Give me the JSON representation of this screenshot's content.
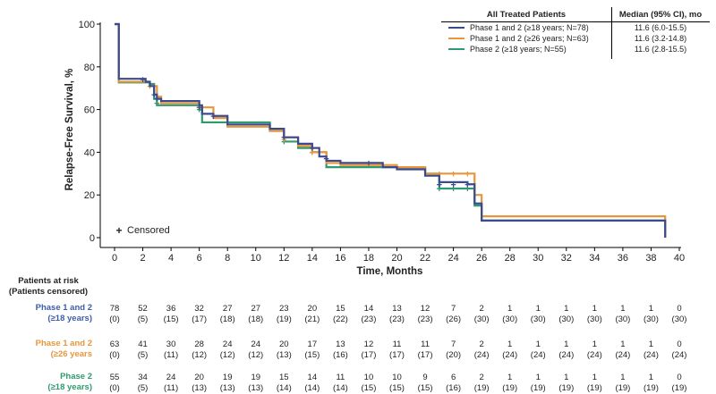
{
  "chart_data": {
    "type": "line",
    "title": "",
    "xlabel": "Time, Months",
    "ylabel": "Relapse-Free Survival, %",
    "xlim": [
      0,
      40
    ],
    "ylim": [
      0,
      100
    ],
    "xticks": [
      "0",
      "2",
      "4",
      "6",
      "8",
      "10",
      "12",
      "14",
      "16",
      "18",
      "20",
      "22",
      "24",
      "26",
      "28",
      "30",
      "32",
      "34",
      "36",
      "38",
      "40"
    ],
    "yticks": [
      "0",
      "20",
      "40",
      "60",
      "80",
      "100"
    ],
    "censored_label": "Censored",
    "censored_marker": "+",
    "legend": {
      "header_group": "All Treated Patients",
      "header_median": "Median (95% CI), mo"
    },
    "series": [
      {
        "name": "Phase 1 and 2 (≥18 years; N=78)",
        "median": "11.6 (6.0-15.5)",
        "color": "#3b4a8f",
        "steps": [
          [
            0,
            100
          ],
          [
            0.3,
            74.4
          ],
          [
            2.2,
            73
          ],
          [
            2.5,
            71
          ],
          [
            2.8,
            67
          ],
          [
            3,
            65
          ],
          [
            3.3,
            64
          ],
          [
            6,
            62
          ],
          [
            6.2,
            58
          ],
          [
            7,
            57
          ],
          [
            8,
            53
          ],
          [
            11,
            51
          ],
          [
            12,
            47
          ],
          [
            13,
            44
          ],
          [
            14,
            42
          ],
          [
            14.5,
            38
          ],
          [
            15,
            36
          ],
          [
            16,
            35
          ],
          [
            19,
            33
          ],
          [
            20,
            32
          ],
          [
            22,
            29
          ],
          [
            23,
            26
          ],
          [
            25,
            25
          ],
          [
            25.5,
            16
          ],
          [
            26,
            8
          ],
          [
            38.9,
            8
          ],
          [
            39,
            0
          ]
        ],
        "censors": [
          [
            2,
            74
          ],
          [
            2.8,
            67
          ],
          [
            3,
            65
          ],
          [
            6,
            61
          ],
          [
            7,
            57
          ],
          [
            12,
            47
          ],
          [
            14,
            42
          ],
          [
            15,
            37
          ],
          [
            18,
            35
          ],
          [
            23,
            25
          ],
          [
            24,
            25
          ],
          [
            25,
            25
          ]
        ]
      },
      {
        "name": "Phase 1 and 2 (≥26 years; N=63)",
        "median": "11.6 (3.2-14.8)",
        "color": "#e8963c",
        "steps": [
          [
            0,
            100
          ],
          [
            0.3,
            73
          ],
          [
            2,
            73
          ],
          [
            2.5,
            71
          ],
          [
            3,
            66
          ],
          [
            3.3,
            63
          ],
          [
            6,
            61
          ],
          [
            7,
            56
          ],
          [
            8,
            52
          ],
          [
            11,
            50
          ],
          [
            12,
            47
          ],
          [
            13,
            43
          ],
          [
            14,
            40
          ],
          [
            15,
            35
          ],
          [
            16,
            34
          ],
          [
            20,
            33
          ],
          [
            21,
            33
          ],
          [
            22,
            30
          ],
          [
            25.5,
            20
          ],
          [
            26,
            10
          ],
          [
            39,
            10
          ],
          [
            39,
            0
          ]
        ],
        "censors": [
          [
            2.5,
            71
          ],
          [
            6,
            61
          ],
          [
            12,
            46
          ],
          [
            14,
            40
          ],
          [
            23,
            30
          ],
          [
            24,
            30
          ],
          [
            25,
            30
          ]
        ]
      },
      {
        "name": "Phase 2 (≥18 years; N=55)",
        "median": "11.6 (2.8-15.5)",
        "color": "#2e9a6e",
        "steps": [
          [
            0,
            100
          ],
          [
            0.3,
            72.7
          ],
          [
            2.5,
            72
          ],
          [
            2.8,
            65
          ],
          [
            3,
            62
          ],
          [
            6,
            60
          ],
          [
            6.2,
            54
          ],
          [
            8,
            54
          ],
          [
            11,
            50
          ],
          [
            12,
            45
          ],
          [
            13,
            42
          ],
          [
            14,
            40
          ],
          [
            15,
            33
          ],
          [
            20,
            33
          ],
          [
            22,
            30
          ],
          [
            23,
            23
          ],
          [
            25,
            23
          ],
          [
            25.5,
            15
          ],
          [
            26,
            8
          ],
          [
            39,
            8
          ],
          [
            39,
            0
          ]
        ],
        "censors": [
          [
            3,
            63
          ],
          [
            6,
            60
          ],
          [
            12,
            45
          ],
          [
            14,
            40
          ],
          [
            23,
            23
          ],
          [
            24,
            23
          ],
          [
            25,
            23
          ]
        ]
      }
    ]
  },
  "risk_table": {
    "title_line1": "Patients at risk",
    "title_line2": "(Patients censored)",
    "times": [
      0,
      2,
      4,
      6,
      8,
      10,
      12,
      14,
      16,
      18,
      20,
      22,
      24,
      26,
      28,
      30,
      32,
      34,
      36,
      38,
      40
    ],
    "groups": [
      {
        "label_line1": "Phase 1 and 2",
        "label_line2": "(≥18 years)",
        "color": "#3b5ea8",
        "at_risk": [
          "78",
          "52",
          "36",
          "32",
          "27",
          "27",
          "23",
          "20",
          "15",
          "14",
          "13",
          "12",
          "7",
          "2",
          "1",
          "1",
          "1",
          "1",
          "1",
          "1",
          "0"
        ],
        "censored": [
          "(0)",
          "(5)",
          "(15)",
          "(17)",
          "(18)",
          "(18)",
          "(19)",
          "(21)",
          "(22)",
          "(23)",
          "(23)",
          "(23)",
          "(26)",
          "(30)",
          "(30)",
          "(30)",
          "(30)",
          "(30)",
          "(30)",
          "(30)",
          "(30)"
        ]
      },
      {
        "label_line1": "Phase 1 and 2",
        "label_line2": "(≥26 years",
        "color": "#e8963c",
        "at_risk": [
          "63",
          "41",
          "30",
          "28",
          "24",
          "24",
          "20",
          "17",
          "13",
          "12",
          "11",
          "11",
          "7",
          "2",
          "1",
          "1",
          "1",
          "1",
          "1",
          "1",
          "0"
        ],
        "censored": [
          "(0)",
          "(5)",
          "(11)",
          "(12)",
          "(12)",
          "(12)",
          "(13)",
          "(15)",
          "(16)",
          "(17)",
          "(17)",
          "(17)",
          "(20)",
          "(24)",
          "(24)",
          "(24)",
          "(24)",
          "(24)",
          "(24)",
          "(24)",
          "(24)"
        ]
      },
      {
        "label_line1": "Phase 2",
        "label_line2": "(≥18 years)",
        "color": "#2e9a6e",
        "at_risk": [
          "55",
          "34",
          "24",
          "20",
          "19",
          "19",
          "15",
          "14",
          "11",
          "10",
          "10",
          "9",
          "6",
          "2",
          "1",
          "1",
          "1",
          "1",
          "1",
          "1",
          "0"
        ],
        "censored": [
          "(0)",
          "(5)",
          "(11)",
          "(13)",
          "(13)",
          "(13)",
          "(14)",
          "(14)",
          "(14)",
          "(15)",
          "(15)",
          "(15)",
          "(16)",
          "(19)",
          "(19)",
          "(19)",
          "(19)",
          "(19)",
          "(19)",
          "(19)",
          "(19)"
        ]
      }
    ]
  }
}
